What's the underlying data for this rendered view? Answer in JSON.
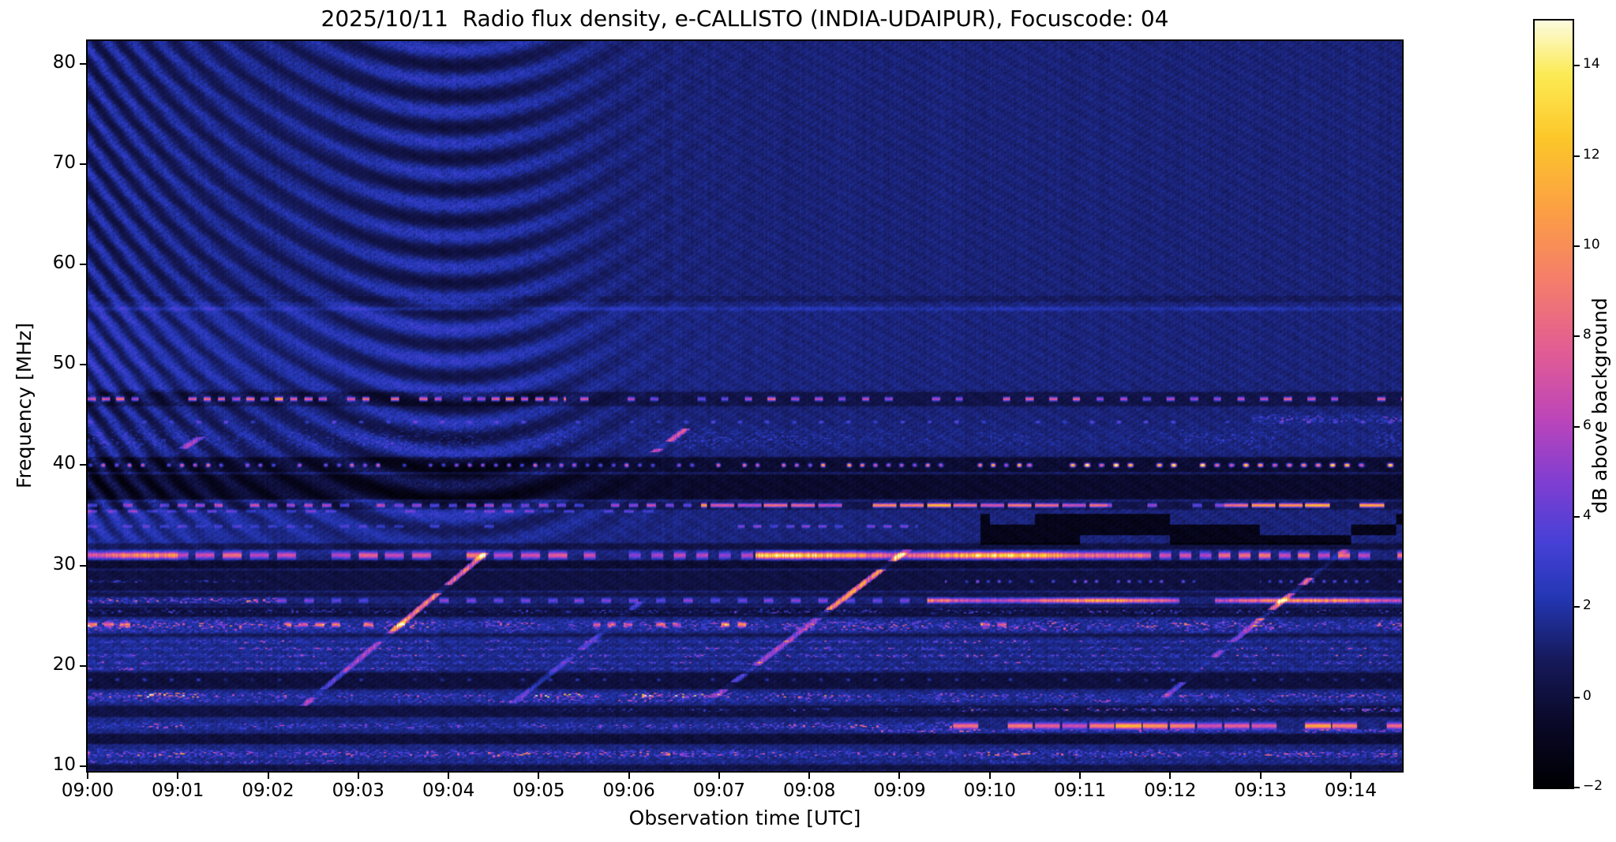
{
  "chart_data": {
    "type": "heatmap",
    "title": "2025/10/11  Radio flux density, e-CALLISTO (INDIA-UDAIPUR), Focuscode: 04",
    "date": "2025/10/11",
    "instrument": "e-CALLISTO",
    "station": "INDIA-UDAIPUR",
    "focuscode": "04",
    "xlabel": "Observation time [UTC]",
    "ylabel": "Frequency [MHz]",
    "colorbar_label": "dB above background",
    "x_tick_labels": [
      "09:00",
      "09:01",
      "09:02",
      "09:03",
      "09:04",
      "09:05",
      "09:06",
      "09:07",
      "09:08",
      "09:09",
      "09:10",
      "09:11",
      "09:12",
      "09:13",
      "09:14"
    ],
    "x_tick_minutes": [
      0,
      1,
      2,
      3,
      4,
      5,
      6,
      7,
      8,
      9,
      10,
      11,
      12,
      13,
      14
    ],
    "duration_minutes": 14.57,
    "y_tick_labels": [
      "80",
      "70",
      "60",
      "50",
      "40",
      "30",
      "20",
      "10"
    ],
    "y_ticks_mhz": [
      80,
      70,
      60,
      50,
      40,
      30,
      20,
      10
    ],
    "freq_range_mhz": [
      9.5,
      82.3
    ],
    "colorbar_tick_values": [
      14,
      12,
      10,
      8,
      6,
      4,
      2,
      0,
      -2
    ],
    "colorbar_tick_labels": [
      "14",
      "12",
      "10",
      "8",
      "6",
      "4",
      "2",
      "0",
      "−2"
    ],
    "value_range_db": [
      -2,
      15
    ],
    "background_level_db": 1.25,
    "colormap_stops": [
      [
        -2,
        [
          0,
          0,
          4
        ]
      ],
      [
        -0.6,
        [
          10,
          9,
          40
        ]
      ],
      [
        0.8,
        [
          22,
          26,
          90
        ]
      ],
      [
        2.2,
        [
          36,
          55,
          180
        ]
      ],
      [
        3.4,
        [
          70,
          65,
          215
        ]
      ],
      [
        4.8,
        [
          130,
          62,
          210
        ]
      ],
      [
        6.2,
        [
          190,
          70,
          185
        ]
      ],
      [
        7.6,
        [
          225,
          92,
          150
        ]
      ],
      [
        9.2,
        [
          245,
          125,
          108
        ]
      ],
      [
        10.8,
        [
          252,
          160,
          68
        ]
      ],
      [
        12.4,
        [
          253,
          200,
          42
        ]
      ],
      [
        13.8,
        [
          252,
          235,
          85
        ]
      ],
      [
        15,
        [
          253,
          252,
          225
        ]
      ]
    ],
    "features": {
      "fringe_pattern": {
        "min_freq_mhz": 30.5,
        "vertex_minute": 4.1,
        "curvature_mhz_per_min2": 1.5,
        "wavelength_mhz": 3.1,
        "amp_db": 1.25,
        "decay_minutes": 2.3,
        "secondary_peak_minute": 4.05
      },
      "wash_bands": [
        [
          47.5,
          57,
          0.55,
          5
        ],
        [
          31,
          36.4,
          0.7,
          4
        ],
        [
          19.5,
          24.6,
          0.35,
          8
        ],
        [
          10.5,
          17.5,
          0.25,
          9
        ]
      ],
      "dark_bands": [
        [
          45.8,
          47.4,
          0,
          14.6,
          -0.9
        ],
        [
          39.2,
          40.9,
          0,
          14.6,
          -1.5
        ],
        [
          36.5,
          39.2,
          0,
          14.6,
          -1.7
        ],
        [
          35.5,
          36.45,
          0,
          14.6,
          -0.9
        ],
        [
          31.5,
          32.3,
          0,
          14.6,
          -1.1
        ],
        [
          29.6,
          30.6,
          0,
          14.6,
          -1.5
        ],
        [
          27.4,
          29.6,
          0,
          14.6,
          -1.1
        ],
        [
          26.8,
          27.4,
          0,
          14.6,
          -0.8
        ],
        [
          25.9,
          26.24,
          0,
          14.6,
          -0.8
        ],
        [
          24.8,
          25.9,
          0,
          14.6,
          -1.3
        ],
        [
          22.8,
          23.3,
          0,
          14.6,
          -0.9
        ],
        [
          17.6,
          19.4,
          0,
          14.6,
          -1.2
        ],
        [
          14.8,
          16.1,
          0,
          14.6,
          -1.2
        ],
        [
          12.1,
          13.3,
          0,
          14.6,
          -1.4
        ],
        [
          9.5,
          10.2,
          0,
          14.6,
          -1.0
        ],
        [
          56.2,
          57.0,
          0,
          14.6,
          -0.5
        ]
      ],
      "rfi_lines": [
        {
          "f": 46.6,
          "hw": 0.22,
          "segs": [
            [
              0,
              5.3,
              7.5,
              "dash",
              0.16,
              0.55
            ],
            [
              5.3,
              14.6,
              5.5,
              "dash",
              0.26,
              0.33
            ]
          ]
        },
        {
          "f": 40.0,
          "hw": 0.2,
          "segs": [
            [
              0,
              8,
              7,
              "dot",
              0.145,
              0.42
            ],
            [
              8,
              10.4,
              9.5,
              "dot",
              0.145,
              0.45
            ],
            [
              10.4,
              14.6,
              12,
              "dot",
              0.16,
              0.5
            ]
          ]
        },
        {
          "f": 44.3,
          "hw": 0.15,
          "segs": [
            [
              0,
              14.6,
              2.8,
              "dot",
              0.3,
              0.22
            ]
          ]
        },
        {
          "f": 44.6,
          "hw": 0.5,
          "segs": [
            [
              12.9,
              14.6,
              2.8,
              "speckle",
              0,
              0
            ]
          ]
        },
        {
          "f": 36.0,
          "hw": 0.22,
          "segs": [
            [
              0,
              6.8,
              4.5,
              "dash",
              0.2,
              0.5
            ],
            [
              6.8,
              11.3,
              8.5,
              "dash",
              0.3,
              0.88
            ],
            [
              11.3,
              12.6,
              4,
              "dash",
              0.25,
              0.4
            ],
            [
              12.6,
              14.6,
              8.5,
              "dash",
              0.3,
              0.9
            ]
          ]
        },
        {
          "f": 35.4,
          "hw": 0.16,
          "segs": [
            [
              0,
              6.8,
              2.4,
              "dash",
              0.22,
              0.5
            ]
          ]
        },
        {
          "f": 33.9,
          "hw": 0.16,
          "segs": [
            [
              0,
              4.5,
              1.8,
              "dash",
              0.2,
              0.5
            ],
            [
              7.2,
              9.2,
              3,
              "dash",
              0.18,
              0.5
            ]
          ]
        },
        {
          "f": 31.0,
          "hw": 0.38,
          "segs": [
            [
              0,
              1,
              8,
              "solid",
              0,
              0
            ],
            [
              1,
              5.4,
              6.5,
              "dash",
              0.3,
              0.7
            ],
            [
              5.4,
              7.4,
              4,
              "dash",
              0.25,
              0.5
            ],
            [
              7.4,
              11.7,
              11.5,
              "solid",
              0,
              0
            ],
            [
              11.7,
              14.6,
              5.5,
              "dash",
              0.22,
              0.6
            ]
          ]
        },
        {
          "f": 28.4,
          "hw": 0.16,
          "segs": [
            [
              0,
              2,
              2,
              "speckle",
              0,
              0
            ],
            [
              9.5,
              12.3,
              4.5,
              "dot",
              0.12,
              0.4
            ],
            [
              13,
              14.6,
              3.5,
              "dot",
              0.12,
              0.4
            ]
          ]
        },
        {
          "f": 26.5,
          "hw": 0.26,
          "segs": [
            [
              0,
              2.1,
              5,
              "speckle",
              0,
              0
            ],
            [
              2.1,
              9.3,
              3,
              "dash",
              0.3,
              0.35
            ],
            [
              9.3,
              12.1,
              9,
              "solid",
              0,
              0
            ],
            [
              12.5,
              14.6,
              9,
              "solid",
              0,
              0
            ]
          ]
        },
        {
          "f": 24.0,
          "hw": 0.6,
          "segs": [
            [
              0,
              14.6,
              4.2,
              "speckle",
              0,
              0
            ]
          ]
        },
        {
          "f": 24.1,
          "hw": 0.25,
          "segs": [
            [
              0,
              0.6,
              6.5,
              "dash",
              0.18,
              0.6
            ],
            [
              2.2,
              3.6,
              6,
              "dash",
              0.18,
              0.55
            ],
            [
              5.6,
              7.3,
              6,
              "dash",
              0.18,
              0.55
            ],
            [
              9.8,
              10.4,
              6,
              "dash",
              0.18,
              0.6
            ]
          ]
        },
        {
          "f": 22.4,
          "hw": 0.18,
          "segs": [
            [
              0,
              14.6,
              3.2,
              "speckle",
              0,
              0
            ]
          ]
        },
        {
          "f": 21.7,
          "hw": 0.18,
          "segs": [
            [
              0,
              14.6,
              2.8,
              "speckle",
              0,
              0
            ]
          ]
        },
        {
          "f": 21.0,
          "hw": 0.18,
          "segs": [
            [
              0,
              14.6,
              3.0,
              "speckle",
              0,
              0
            ]
          ]
        },
        {
          "f": 20.3,
          "hw": 0.18,
          "segs": [
            [
              0,
              14.6,
              2.6,
              "speckle",
              0,
              0
            ]
          ]
        },
        {
          "f": 19.7,
          "hw": 0.18,
          "segs": [
            [
              0,
              14.6,
              2.4,
              "speckle",
              0,
              0
            ]
          ]
        },
        {
          "f": 18.6,
          "hw": 0.15,
          "segs": [
            [
              0,
              14.6,
              2.2,
              "dot",
              0.3,
              0.2
            ]
          ]
        },
        {
          "f": 17.0,
          "hw": 0.32,
          "segs": [
            [
              0,
              1.25,
              8,
              "speckle",
              0,
              0
            ],
            [
              1.25,
              4.7,
              4,
              "speckle",
              0,
              0
            ],
            [
              4.7,
              7,
              7,
              "speckle",
              0,
              0
            ],
            [
              7,
              10.2,
              4.5,
              "speckle",
              0,
              0
            ],
            [
              10.2,
              14.6,
              3.5,
              "speckle",
              0,
              0
            ]
          ]
        },
        {
          "f": 16.5,
          "hw": 0.2,
          "segs": [
            [
              0,
              14.6,
              2.8,
              "speckle",
              0,
              0
            ]
          ]
        },
        {
          "f": 15.6,
          "hw": 0.22,
          "segs": [
            [
              5,
              9.7,
              1.5,
              "speckle",
              0,
              0
            ],
            [
              9.7,
              14.6,
              4.8,
              "speckle",
              0,
              0
            ]
          ]
        },
        {
          "f": 14.0,
          "hw": 0.34,
          "segs": [
            [
              0,
              2.3,
              4,
              "speckle",
              0,
              0
            ],
            [
              2.3,
              8.1,
              3,
              "speckle",
              0,
              0
            ],
            [
              8.1,
              9.6,
              5.5,
              "speckle",
              0,
              0
            ],
            [
              9.6,
              14.6,
              7.5,
              "dash",
              0.3,
              0.92
            ]
          ]
        },
        {
          "f": 13.5,
          "hw": 0.2,
          "segs": [
            [
              8.5,
              14.6,
              3.5,
              "speckle",
              0,
              0
            ]
          ]
        },
        {
          "f": 11.2,
          "hw": 0.4,
          "segs": [
            [
              0,
              1.1,
              6,
              "speckle",
              0,
              0
            ],
            [
              1.1,
              14.6,
              4.3,
              "speckle",
              0,
              0
            ]
          ]
        },
        {
          "f": 10.4,
          "hw": 0.2,
          "segs": [
            [
              0,
              3,
              3,
              "speckle",
              0,
              0
            ],
            [
              3,
              14.6,
              1.5,
              "speckle",
              0,
              0
            ]
          ]
        },
        {
          "f": 55.6,
          "hw": 0.25,
          "segs": [
            [
              0,
              14.6,
              1.0,
              "solid",
              0,
              0
            ]
          ]
        },
        {
          "f": 42.6,
          "hw": 1.2,
          "segs": [
            [
              0,
              14.6,
              0.9,
              "speckle",
              0,
              0
            ]
          ]
        },
        {
          "f": 25.4,
          "hw": 0.3,
          "segs": [
            [
              0,
              14.6,
              2.2,
              "speckle",
              0,
              0
            ]
          ]
        }
      ],
      "sweeps": [
        {
          "t0": 2.42,
          "f0": 16.2,
          "t1": 4.42,
          "f1": 31.3,
          "amp": 4.5,
          "bright": [
            23.5,
            31.3,
            9
          ]
        },
        {
          "t0": 6.85,
          "f0": 16.2,
          "t1": 9.05,
          "f1": 31.3,
          "amp": 4.5,
          "bright": [
            25,
            31.3,
            10
          ]
        },
        {
          "t0": 11.85,
          "f0": 16.2,
          "t1": 13.9,
          "f1": 31.3,
          "amp": 4.2,
          "bright": [
            24.5,
            31.3,
            9
          ]
        },
        {
          "t0": 4.75,
          "f0": 16.5,
          "t1": 6.15,
          "f1": 26.5,
          "amp": 2.5,
          "bright": null
        },
        {
          "t0": 6.33,
          "f0": 41.6,
          "t1": 6.6,
          "f1": 43.4,
          "amp": 6,
          "bright": null
        },
        {
          "t0": 1.0,
          "f0": 41.3,
          "t1": 1.22,
          "f1": 42.6,
          "amp": 4.5,
          "bright": null
        }
      ],
      "dark_patch_region": {
        "f0": 32.1,
        "f1": 35.2,
        "t0": 9.9,
        "t1": 14.6,
        "amp": -2.4,
        "fill": 0.55,
        "cell_min": 0.5,
        "cell_mhz": 1.1
      }
    }
  }
}
